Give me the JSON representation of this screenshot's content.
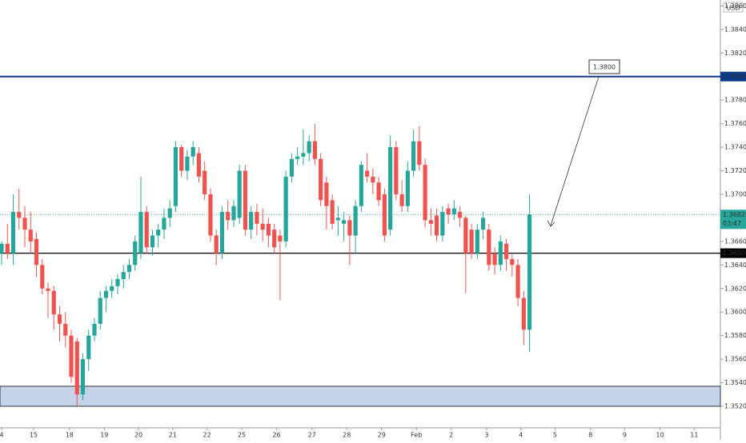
{
  "chart_data": {
    "type": "candlestick",
    "currency": "USD",
    "up_color": "#26a69a",
    "down_color": "#ef5350",
    "ohlc": [
      [
        1.365,
        1.366,
        1.364,
        1.3658
      ],
      [
        1.3658,
        1.3675,
        1.3645,
        1.365
      ],
      [
        1.365,
        1.37,
        1.364,
        1.3685
      ],
      [
        1.3685,
        1.3705,
        1.367,
        1.368
      ],
      [
        1.368,
        1.369,
        1.3655,
        1.367
      ],
      [
        1.367,
        1.3685,
        1.365,
        1.366
      ],
      [
        1.3662,
        1.3668,
        1.363,
        1.364
      ],
      [
        1.364,
        1.3645,
        1.3615,
        1.362
      ],
      [
        1.362,
        1.3625,
        1.3595,
        1.3618
      ],
      [
        1.3618,
        1.3622,
        1.3585,
        1.3598
      ],
      [
        1.3598,
        1.3605,
        1.3575,
        1.359
      ],
      [
        1.359,
        1.36,
        1.357,
        1.358
      ],
      [
        1.358,
        1.3585,
        1.354,
        1.3545
      ],
      [
        1.3575,
        1.3578,
        1.352,
        1.353
      ],
      [
        1.353,
        1.3565,
        1.3525,
        1.356
      ],
      [
        1.356,
        1.3585,
        1.355,
        1.358
      ],
      [
        1.358,
        1.3595,
        1.3575,
        1.359
      ],
      [
        1.359,
        1.3618,
        1.3585,
        1.3612
      ],
      [
        1.3612,
        1.3622,
        1.36,
        1.3618
      ],
      [
        1.3618,
        1.3628,
        1.3612,
        1.3622
      ],
      [
        1.3622,
        1.3632,
        1.3615,
        1.3628
      ],
      [
        1.3628,
        1.364,
        1.362,
        1.3634
      ],
      [
        1.3634,
        1.3645,
        1.3628,
        1.364
      ],
      [
        1.364,
        1.3665,
        1.3635,
        1.366
      ],
      [
        1.365,
        1.3715,
        1.3645,
        1.3685
      ],
      [
        1.3685,
        1.369,
        1.365,
        1.3655
      ],
      [
        1.3655,
        1.367,
        1.3648,
        1.3665
      ],
      [
        1.3665,
        1.3675,
        1.3655,
        1.367
      ],
      [
        1.367,
        1.3688,
        1.3662,
        1.368
      ],
      [
        1.368,
        1.3695,
        1.3672,
        1.3688
      ],
      [
        1.369,
        1.3745,
        1.3685,
        1.374
      ],
      [
        1.374,
        1.3742,
        1.3715,
        1.372
      ],
      [
        1.372,
        1.3738,
        1.3712,
        1.3732
      ],
      [
        1.3732,
        1.3745,
        1.3725,
        1.374
      ],
      [
        1.3735,
        1.374,
        1.371,
        1.3715
      ],
      [
        1.372,
        1.3728,
        1.3695,
        1.37
      ],
      [
        1.37,
        1.3705,
        1.366,
        1.3665
      ],
      [
        1.3665,
        1.367,
        1.364,
        1.365
      ],
      [
        1.365,
        1.369,
        1.3645,
        1.3685
      ],
      [
        1.3685,
        1.3695,
        1.367,
        1.3678
      ],
      [
        1.3678,
        1.3695,
        1.3672,
        1.369
      ],
      [
        1.368,
        1.3725,
        1.3675,
        1.372
      ],
      [
        1.372,
        1.3725,
        1.3665,
        1.367
      ],
      [
        1.367,
        1.369,
        1.3662,
        1.3685
      ],
      [
        1.3685,
        1.3692,
        1.3665,
        1.3675
      ],
      [
        1.3675,
        1.3688,
        1.366,
        1.367
      ],
      [
        1.3675,
        1.368,
        1.3655,
        1.3665
      ],
      [
        1.367,
        1.3675,
        1.365,
        1.3655
      ],
      [
        1.3665,
        1.367,
        1.361,
        1.366
      ],
      [
        1.366,
        1.372,
        1.3655,
        1.3715
      ],
      [
        1.3715,
        1.3735,
        1.371,
        1.373
      ],
      [
        1.373,
        1.374,
        1.3725,
        1.3732
      ],
      [
        1.3732,
        1.3755,
        1.3725,
        1.3735
      ],
      [
        1.3735,
        1.375,
        1.3728,
        1.3745
      ],
      [
        1.3745,
        1.376,
        1.3725,
        1.373
      ],
      [
        1.373,
        1.3735,
        1.369,
        1.3695
      ],
      [
        1.371,
        1.3715,
        1.367,
        1.369
      ],
      [
        1.3695,
        1.37,
        1.367,
        1.3675
      ],
      [
        1.3678,
        1.369,
        1.3665,
        1.368
      ],
      [
        1.3675,
        1.3685,
        1.366,
        1.3678
      ],
      [
        1.3678,
        1.3682,
        1.364,
        1.3665
      ],
      [
        1.3665,
        1.3695,
        1.365,
        1.369
      ],
      [
        1.369,
        1.3728,
        1.3685,
        1.3725
      ],
      [
        1.372,
        1.3735,
        1.371,
        1.3715
      ],
      [
        1.3715,
        1.3722,
        1.37,
        1.371
      ],
      [
        1.371,
        1.3715,
        1.369,
        1.3695
      ],
      [
        1.37,
        1.3705,
        1.366,
        1.3665
      ],
      [
        1.367,
        1.375,
        1.3665,
        1.374
      ],
      [
        1.374,
        1.3745,
        1.3695,
        1.37
      ],
      [
        1.37,
        1.3712,
        1.3685,
        1.369
      ],
      [
        1.369,
        1.3728,
        1.3685,
        1.372
      ],
      [
        1.372,
        1.3755,
        1.3715,
        1.3745
      ],
      [
        1.3745,
        1.3758,
        1.372,
        1.3725
      ],
      [
        1.3725,
        1.373,
        1.3672,
        1.3678
      ],
      [
        1.3678,
        1.3688,
        1.3665,
        1.3675
      ],
      [
        1.3682,
        1.3688,
        1.366,
        1.3665
      ],
      [
        1.3665,
        1.369,
        1.366,
        1.3685
      ],
      [
        1.3688,
        1.3692,
        1.3675,
        1.3683
      ],
      [
        1.3683,
        1.3695,
        1.3678,
        1.3688
      ],
      [
        1.3685,
        1.369,
        1.3672,
        1.368
      ],
      [
        1.368,
        1.3682,
        1.3616,
        1.365
      ],
      [
        1.367,
        1.3675,
        1.3645,
        1.365
      ],
      [
        1.365,
        1.3675,
        1.3645,
        1.367
      ],
      [
        1.367,
        1.3685,
        1.3662,
        1.368
      ],
      [
        1.367,
        1.3675,
        1.3635,
        1.364
      ],
      [
        1.365,
        1.3655,
        1.3632,
        1.364
      ],
      [
        1.364,
        1.3665,
        1.3635,
        1.366
      ],
      [
        1.3658,
        1.3662,
        1.3635,
        1.3645
      ],
      [
        1.3645,
        1.365,
        1.363,
        1.364
      ],
      [
        1.364,
        1.3645,
        1.3605,
        1.3612
      ],
      [
        1.3612,
        1.3618,
        1.3572,
        1.3585
      ],
      [
        1.3585,
        1.37,
        1.3566,
        1.36828
      ]
    ],
    "xlim": [
      -0.28,
      123.9
    ],
    "xticks": [
      {
        "value": 0,
        "label": "4"
      },
      {
        "value": 5.5,
        "label": "15"
      },
      {
        "value": 11.7,
        "label": "18"
      },
      {
        "value": 17.7,
        "label": "19"
      },
      {
        "value": 23.6,
        "label": "20"
      },
      {
        "value": 29.5,
        "label": "21"
      },
      {
        "value": 35.4,
        "label": "22"
      },
      {
        "value": 41.4,
        "label": "25"
      },
      {
        "value": 47.4,
        "label": "26"
      },
      {
        "value": 53.5,
        "label": "27"
      },
      {
        "value": 59.5,
        "label": "28"
      },
      {
        "value": 65.5,
        "label": "29"
      },
      {
        "value": 71.5,
        "label": "Feb"
      },
      {
        "value": 77.5,
        "label": "2"
      },
      {
        "value": 83.6,
        "label": "3"
      },
      {
        "value": 89.5,
        "label": "4"
      },
      {
        "value": 95.4,
        "label": "5"
      },
      {
        "value": 101.5,
        "label": "8"
      },
      {
        "value": 107.4,
        "label": "9"
      },
      {
        "value": 113.5,
        "label": "10"
      },
      {
        "value": 119.4,
        "label": "11"
      }
    ],
    "ylim": [
      1.35017,
      1.3865
    ],
    "yticks": [
      {
        "value": 1.352,
        "label": "1.35200"
      },
      {
        "value": 1.354,
        "label": "1.35400"
      },
      {
        "value": 1.356,
        "label": "1.35600"
      },
      {
        "value": 1.358,
        "label": "1.35800"
      },
      {
        "value": 1.36,
        "label": "1.36000"
      },
      {
        "value": 1.362,
        "label": "1.36200"
      },
      {
        "value": 1.364,
        "label": "1.36400"
      },
      {
        "value": 1.366,
        "label": "1.36600"
      },
      {
        "value": 1.37,
        "label": "1.37000"
      },
      {
        "value": 1.372,
        "label": "1.37200"
      },
      {
        "value": 1.374,
        "label": "1.37400"
      },
      {
        "value": 1.376,
        "label": "1.37600"
      },
      {
        "value": 1.378,
        "label": "1.37800"
      },
      {
        "value": 1.382,
        "label": "1.38200"
      },
      {
        "value": 1.384,
        "label": "1.38400"
      },
      {
        "value": 1.386,
        "label": "1.38600"
      }
    ],
    "levels": [
      {
        "value": 1.38,
        "label": "1.38000",
        "color": "#0d3b8c"
      },
      {
        "value": 1.365,
        "label": "1.36500",
        "color": "#000000"
      }
    ],
    "current_price": {
      "value": 1.36828,
      "label": "1.36828",
      "countdown": "03:47",
      "color": "#26a69a"
    },
    "zone": [
      1.352,
      1.3537
    ],
    "annotation": {
      "text": "1.3800"
    }
  }
}
